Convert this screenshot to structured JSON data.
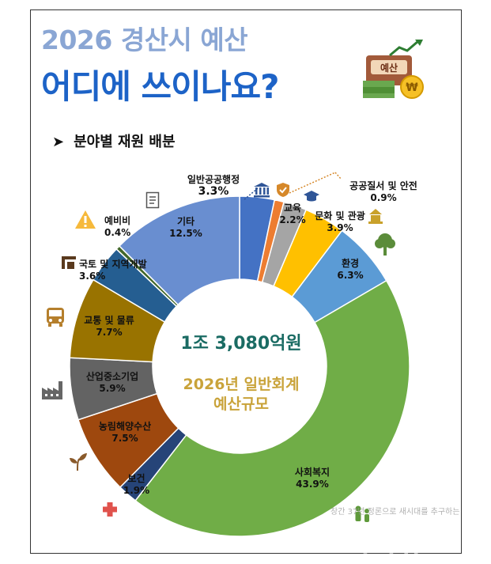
{
  "title": "2026 경산시 예산",
  "headline": "어디에 쓰이나요?",
  "section_heading": "분야별 재원 배분",
  "center": {
    "total": "1조 3,080억원",
    "desc_line1": "2026년 일반회계",
    "desc_line2": "예산규모"
  },
  "watermark": {
    "tagline": "창간 37년 정론으로 새시대를 추구하는",
    "brand": "시사뉴스"
  },
  "icon_badge": "예산",
  "colors": {
    "title_light": "#8aa6d4",
    "title_dark": "#1d63c7",
    "center_total": "#1a6b63",
    "center_desc": "#c9a33a"
  },
  "chart_data": {
    "type": "pie",
    "donut": true,
    "unit": "%",
    "categories": [
      "일반공공행정",
      "공공질서 및 안전",
      "교육",
      "문화 및 관광",
      "환경",
      "사회복지",
      "보건",
      "농림해양수산",
      "산업중소기업",
      "교통 및 물류",
      "국토 및 지역개발",
      "예비비",
      "기타"
    ],
    "values": [
      3.3,
      0.9,
      2.2,
      3.9,
      6.3,
      43.9,
      1.9,
      7.5,
      5.9,
      7.7,
      3.6,
      0.4,
      12.5
    ],
    "labels": [
      "3.3%",
      "0.9%",
      "2.2%",
      "3.9%",
      "6.3%",
      "43.9%",
      "1.9%",
      "7.5%",
      "5.9%",
      "7.7%",
      "3.6%",
      "0.4%",
      "12.5%"
    ],
    "colors": [
      "#4472c4",
      "#ed7d31",
      "#a5a5a5",
      "#ffc000",
      "#5b9bd5",
      "#70ad47",
      "#264478",
      "#9e480e",
      "#636363",
      "#997300",
      "#255e91",
      "#43682b",
      "#698ed0"
    ],
    "icons": [
      "bank-icon",
      "shield-icon",
      "graduation-cap-icon",
      "landmark-icon",
      "tree-icon",
      "family-icon",
      "medical-cross-icon",
      "sprout-icon",
      "factory-icon",
      "bus-icon",
      "construction-icon",
      "warning-icon",
      "document-icon"
    ]
  }
}
